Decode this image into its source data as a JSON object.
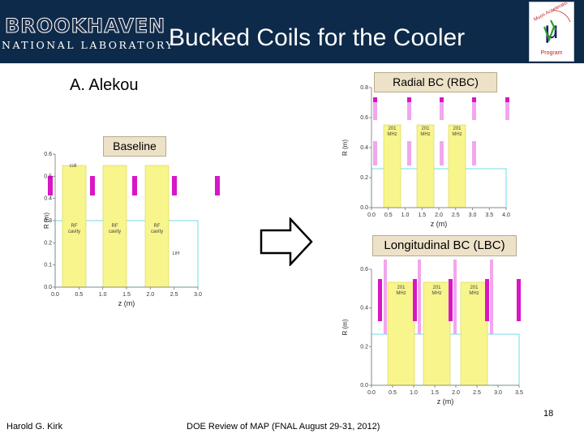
{
  "header": {
    "title": "Bucked Coils for the Cooler",
    "lab_name": "BROOKHAVEN",
    "lab_subtitle": "NATIONAL LABORATORY",
    "program_logo": {
      "line1": "Muon Accelerator",
      "line2": "Program",
      "symbol": "μ"
    }
  },
  "author": "A. Alekou",
  "footer": {
    "left": "Harold G. Kirk",
    "center": "DOE Review of MAP (FNAL August 29-31, 2012)",
    "page": "18"
  },
  "arrow_icon": "right-arrow-icon",
  "colors": {
    "rf": "#f8f58c",
    "coil_dark": "#d816c8",
    "coil_light": "#f2a6ee",
    "beam": "#6fdde4",
    "header": "#0e2a4a"
  },
  "panels": {
    "baseline": {
      "label": "Baseline",
      "xlabel": "z (m)",
      "ylabel": "R (m)",
      "xticks": [
        "0.0",
        "0.5",
        "1.0",
        "1.5",
        "2.0",
        "2.5",
        "3.0"
      ],
      "yticks": [
        "0.0",
        "0.1",
        "0.2",
        "0.3",
        "0.4",
        "0.5",
        "0.6"
      ],
      "coil_label": "coil",
      "cavity_labels": [
        "RF\ncavity",
        "RF\ncavity",
        "RF\ncavity"
      ],
      "lih_label": "LiH"
    },
    "rbc": {
      "label": "Radial BC (RBC)",
      "xlabel": "z (m)",
      "ylabel": "R (m)",
      "xticks": [
        "0.0",
        "0.5",
        "1.0",
        "1.5",
        "2.0",
        "2.5",
        "3.0",
        "3.5",
        "4.0"
      ],
      "yticks": [
        "0.0",
        "0.2",
        "0.4",
        "0.6",
        "0.8"
      ],
      "cavity_labels": [
        "201\nMHz",
        "201\nMHz",
        "201\nMHz"
      ]
    },
    "lbc": {
      "label": "Longitudinal BC (LBC)",
      "xlabel": "z (m)",
      "ylabel": "R (m)",
      "xticks": [
        "0.0",
        "0.5",
        "1.0",
        "1.5",
        "2.0",
        "2.5",
        "3.0",
        "3.5"
      ],
      "yticks": [
        "0.0",
        "0.2",
        "0.4",
        "0.6"
      ],
      "cavity_labels": [
        "201\nMHz",
        "201\nMHz",
        "201\nMHz"
      ]
    }
  }
}
